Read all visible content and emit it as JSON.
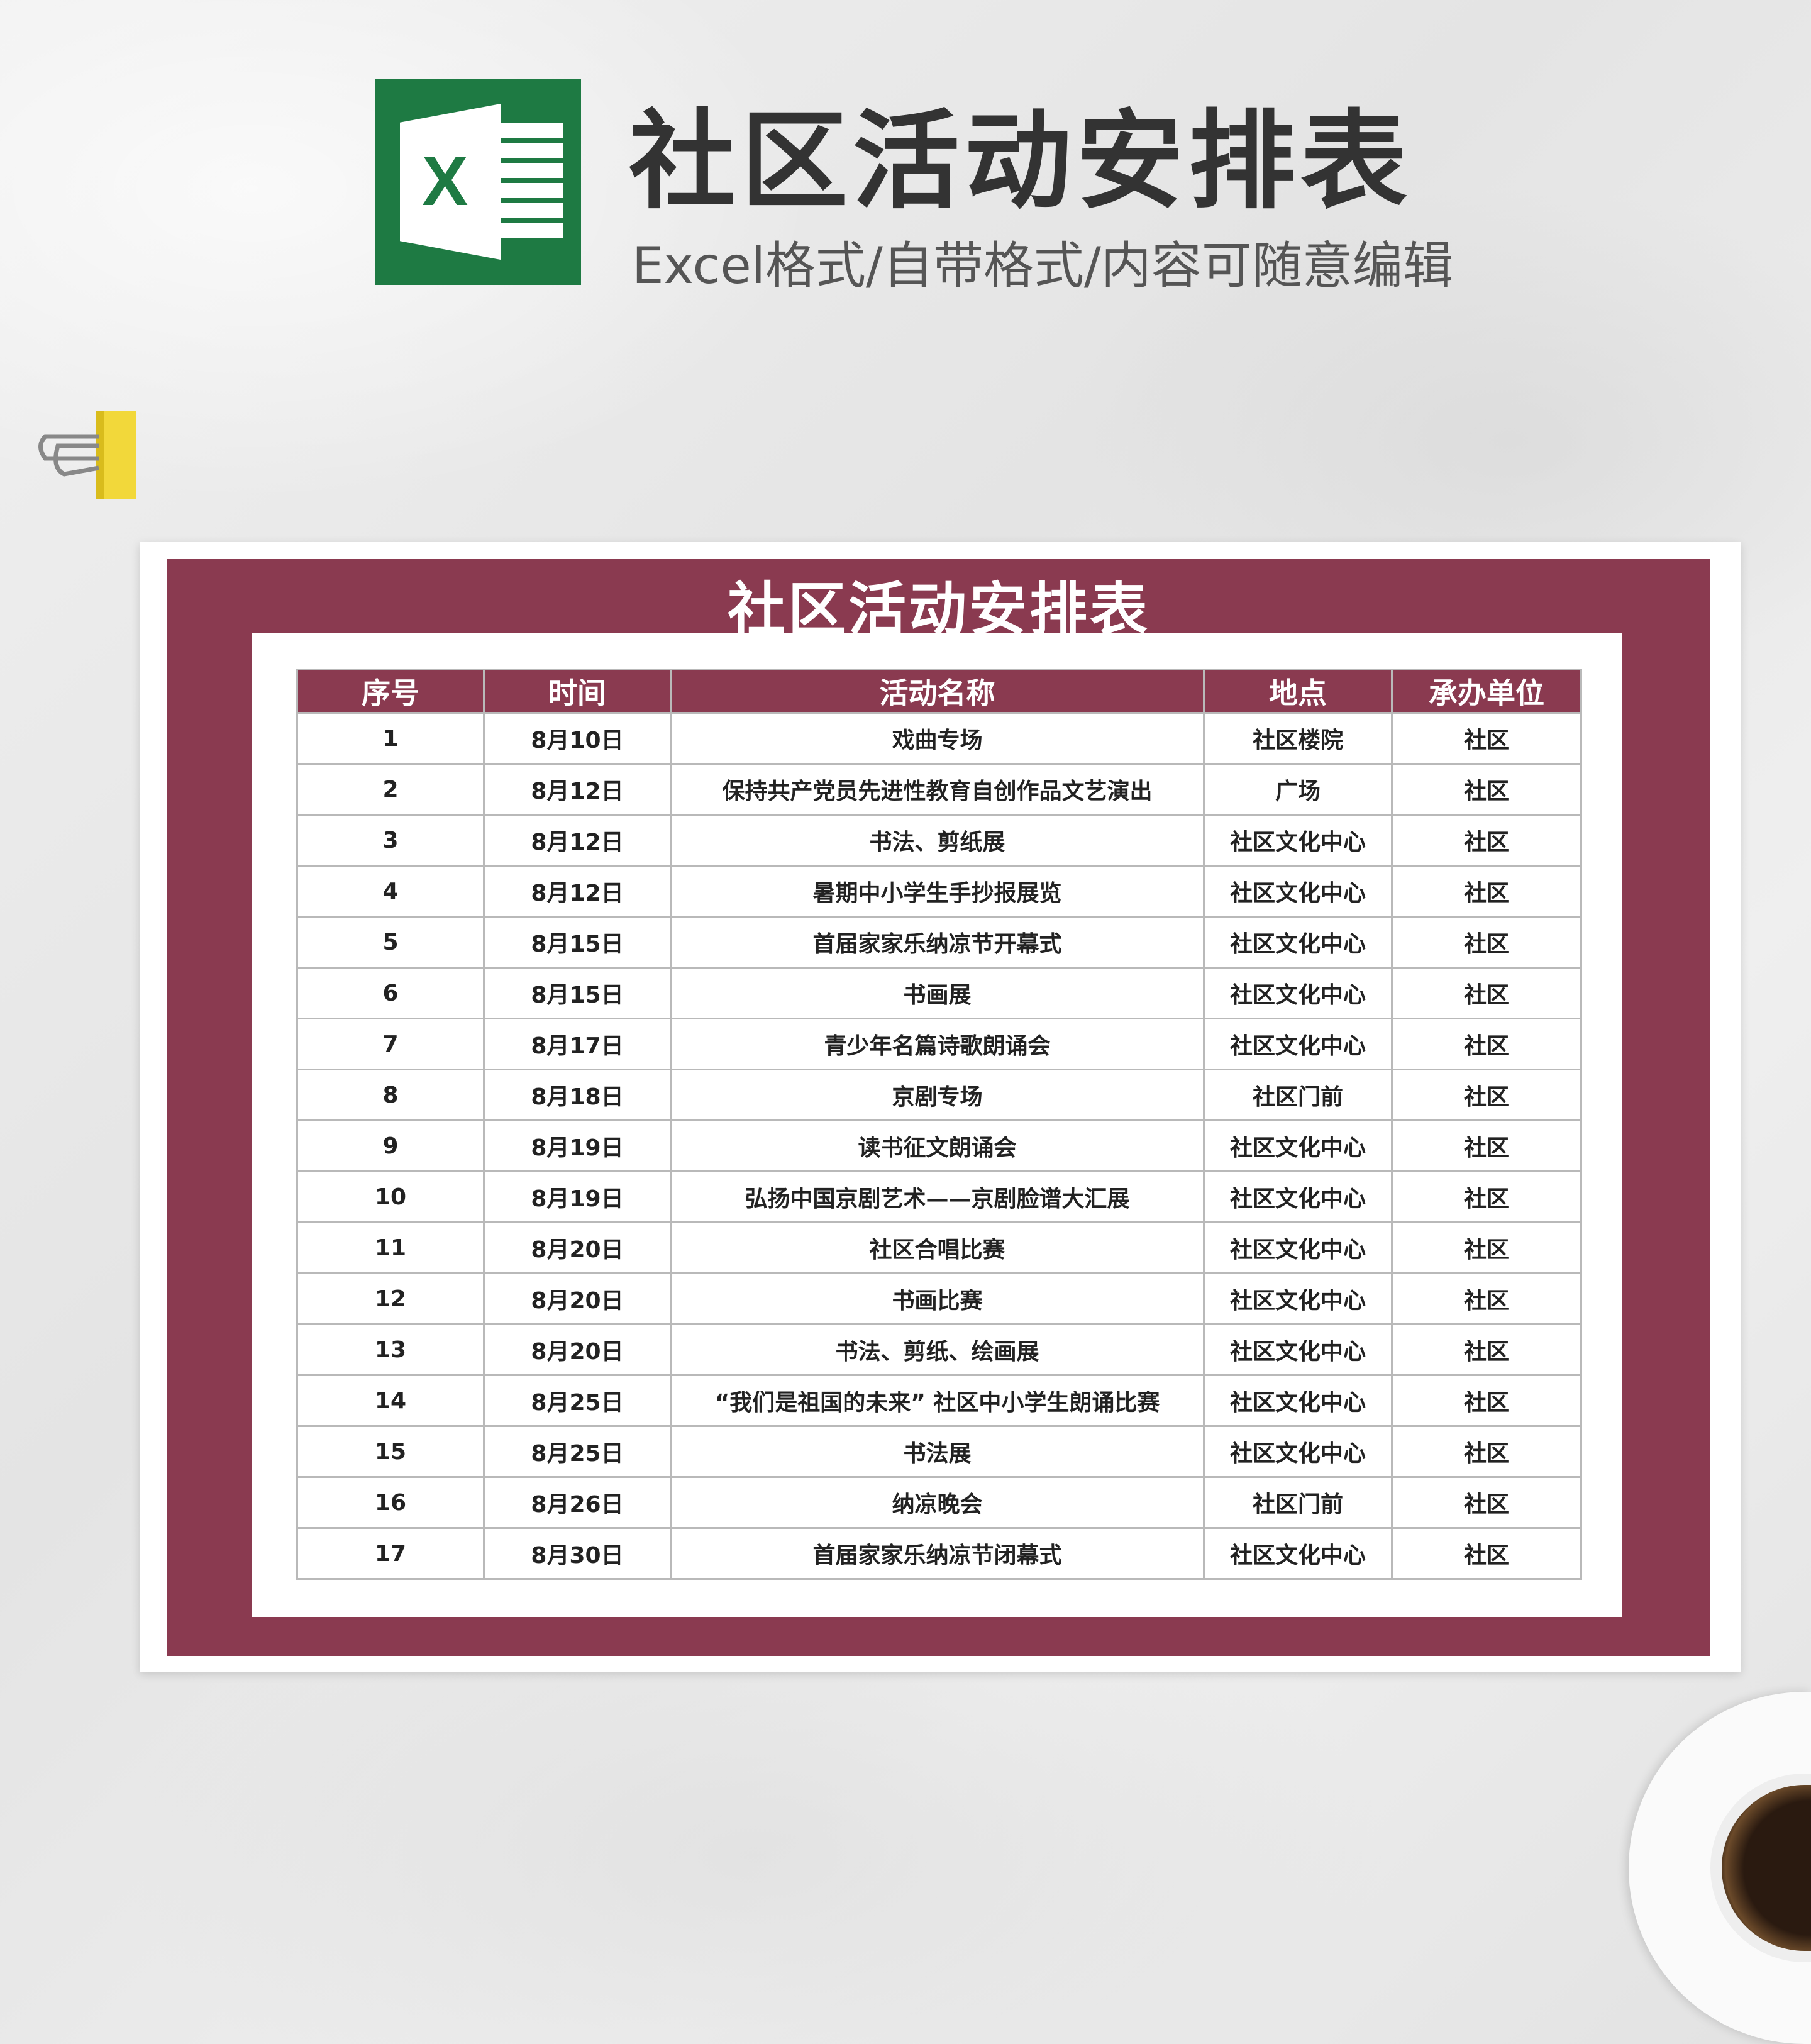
{
  "header": {
    "title": "社区活动安排表",
    "subtitle": "Excel格式/自带格式/内容可随意编辑",
    "icon": "excel-icon"
  },
  "sheet": {
    "title": "社区活动安排表",
    "accent_color": "#8a3a50",
    "columns": [
      "序号",
      "时间",
      "活动名称",
      "地点",
      "承办单位"
    ],
    "rows": [
      [
        "1",
        "8月10日",
        "戏曲专场",
        "社区楼院",
        "社区"
      ],
      [
        "2",
        "8月12日",
        "保持共产党员先进性教育自创作品文艺演出",
        "广场",
        "社区"
      ],
      [
        "3",
        "8月12日",
        "书法、剪纸展",
        "社区文化中心",
        "社区"
      ],
      [
        "4",
        "8月12日",
        "暑期中小学生手抄报展览",
        "社区文化中心",
        "社区"
      ],
      [
        "5",
        "8月15日",
        "首届家家乐纳凉节开幕式",
        "社区文化中心",
        "社区"
      ],
      [
        "6",
        "8月15日",
        "书画展",
        "社区文化中心",
        "社区"
      ],
      [
        "7",
        "8月17日",
        "青少年名篇诗歌朗诵会",
        "社区文化中心",
        "社区"
      ],
      [
        "8",
        "8月18日",
        "京剧专场",
        "社区门前",
        "社区"
      ],
      [
        "9",
        "8月19日",
        "读书征文朗诵会",
        "社区文化中心",
        "社区"
      ],
      [
        "10",
        "8月19日",
        "弘扬中国京剧艺术——京剧脸谱大汇展",
        "社区文化中心",
        "社区"
      ],
      [
        "11",
        "8月20日",
        "社区合唱比赛",
        "社区文化中心",
        "社区"
      ],
      [
        "12",
        "8月20日",
        "书画比赛",
        "社区文化中心",
        "社区"
      ],
      [
        "13",
        "8月20日",
        "书法、剪纸、绘画展",
        "社区文化中心",
        "社区"
      ],
      [
        "14",
        "8月25日",
        "“我们是祖国的未来” 社区中小学生朗诵比赛",
        "社区文化中心",
        "社区"
      ],
      [
        "15",
        "8月25日",
        "书法展",
        "社区文化中心",
        "社区"
      ],
      [
        "16",
        "8月26日",
        "纳凉晚会",
        "社区门前",
        "社区"
      ],
      [
        "17",
        "8月30日",
        "首届家家乐纳凉节闭幕式",
        "社区文化中心",
        "社区"
      ]
    ]
  }
}
